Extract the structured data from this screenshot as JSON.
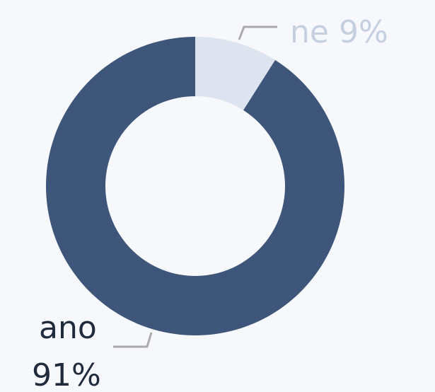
{
  "chart_data": {
    "type": "donut",
    "categories": [
      "ne",
      "ano"
    ],
    "values": [
      9,
      91
    ],
    "value_labels": [
      "9%",
      "91%"
    ],
    "colors": [
      "#dde3ef",
      "#3d5679"
    ]
  }
}
